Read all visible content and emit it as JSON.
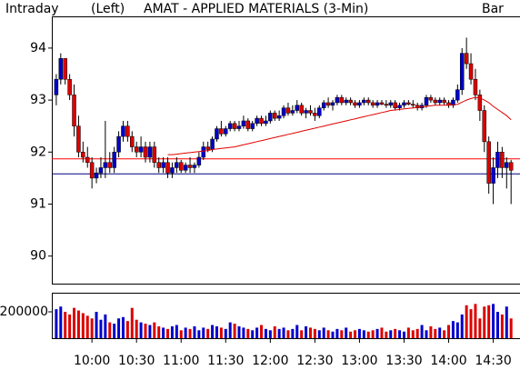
{
  "chart_data": [
    {
      "type": "candlestick",
      "header_left": "Intraday",
      "axis_side": "(Left)",
      "title": "AMAT - APPLIED MATERIALS (3-Min)",
      "chart_style": "Bar",
      "up_color": "#0000cc",
      "down_color": "#dd0000",
      "x": [
        576,
        579,
        582,
        585,
        588,
        591,
        594,
        597,
        600,
        603,
        606,
        609,
        612,
        615,
        618,
        621,
        624,
        627,
        630,
        633,
        636,
        639,
        642,
        645,
        648,
        651,
        654,
        657,
        660,
        663,
        666,
        669,
        672,
        675,
        678,
        681,
        684,
        687,
        690,
        693,
        696,
        699,
        702,
        705,
        708,
        711,
        714,
        717,
        720,
        723,
        726,
        729,
        732,
        735,
        738,
        741,
        744,
        747,
        750,
        753,
        756,
        759,
        762,
        765,
        768,
        771,
        774,
        777,
        780,
        783,
        786,
        789,
        792,
        795,
        798,
        801,
        804,
        807,
        810,
        813,
        816,
        819,
        822,
        825,
        828,
        831,
        834,
        837,
        840,
        843,
        846,
        849,
        852,
        855,
        858,
        861,
        864,
        867,
        870,
        873,
        876,
        879,
        882
      ],
      "ohlc": [
        [
          93.1,
          93.5,
          92.9,
          93.4
        ],
        [
          93.4,
          93.9,
          93.3,
          93.8
        ],
        [
          93.8,
          93.8,
          93.3,
          93.4
        ],
        [
          93.4,
          93.5,
          93.0,
          93.1
        ],
        [
          93.1,
          93.3,
          92.3,
          92.5
        ],
        [
          92.5,
          92.7,
          91.9,
          92.0
        ],
        [
          92.0,
          92.2,
          91.8,
          91.9
        ],
        [
          91.9,
          92.1,
          91.7,
          91.8
        ],
        [
          91.8,
          91.9,
          91.3,
          91.5
        ],
        [
          91.5,
          91.7,
          91.4,
          91.6
        ],
        [
          91.6,
          91.9,
          91.5,
          91.7
        ],
        [
          91.7,
          92.6,
          91.5,
          91.8
        ],
        [
          91.8,
          92.0,
          91.6,
          91.7
        ],
        [
          91.7,
          92.1,
          91.6,
          92.0
        ],
        [
          92.0,
          92.4,
          91.9,
          92.3
        ],
        [
          92.3,
          92.6,
          92.2,
          92.5
        ],
        [
          92.5,
          92.6,
          92.2,
          92.3
        ],
        [
          92.3,
          92.4,
          92.0,
          92.1
        ],
        [
          92.1,
          92.2,
          91.9,
          92.0
        ],
        [
          92.0,
          92.3,
          91.9,
          92.1
        ],
        [
          92.1,
          92.2,
          91.8,
          91.9
        ],
        [
          91.9,
          92.2,
          91.8,
          92.1
        ],
        [
          92.1,
          92.2,
          91.7,
          91.8
        ],
        [
          91.8,
          91.9,
          91.6,
          91.7
        ],
        [
          91.7,
          91.9,
          91.6,
          91.8
        ],
        [
          91.8,
          91.9,
          91.5,
          91.6
        ],
        [
          91.6,
          91.8,
          91.5,
          91.7
        ],
        [
          91.7,
          91.9,
          91.6,
          91.8
        ],
        [
          91.8,
          91.85,
          91.6,
          91.65
        ],
        [
          91.65,
          91.8,
          91.6,
          91.75
        ],
        [
          91.75,
          91.9,
          91.6,
          91.7
        ],
        [
          91.7,
          91.8,
          91.6,
          91.75
        ],
        [
          91.75,
          92.0,
          91.7,
          91.9
        ],
        [
          91.9,
          92.2,
          91.85,
          92.1
        ],
        [
          92.1,
          92.2,
          92.0,
          92.05
        ],
        [
          92.05,
          92.3,
          92.0,
          92.25
        ],
        [
          92.25,
          92.5,
          92.2,
          92.45
        ],
        [
          92.45,
          92.6,
          92.3,
          92.35
        ],
        [
          92.35,
          92.5,
          92.3,
          92.45
        ],
        [
          92.45,
          92.6,
          92.4,
          92.55
        ],
        [
          92.55,
          92.6,
          92.4,
          92.45
        ],
        [
          92.45,
          92.6,
          92.4,
          92.5
        ],
        [
          92.5,
          92.7,
          92.45,
          92.6
        ],
        [
          92.6,
          92.65,
          92.4,
          92.45
        ],
        [
          92.45,
          92.6,
          92.4,
          92.55
        ],
        [
          92.55,
          92.7,
          92.5,
          92.65
        ],
        [
          92.65,
          92.7,
          92.5,
          92.55
        ],
        [
          92.55,
          92.7,
          92.5,
          92.6
        ],
        [
          92.6,
          92.8,
          92.55,
          92.75
        ],
        [
          92.75,
          92.8,
          92.6,
          92.65
        ],
        [
          92.65,
          92.8,
          92.6,
          92.7
        ],
        [
          92.7,
          92.9,
          92.65,
          92.85
        ],
        [
          92.85,
          92.95,
          92.7,
          92.75
        ],
        [
          92.75,
          92.9,
          92.7,
          92.8
        ],
        [
          92.8,
          93.0,
          92.75,
          92.9
        ],
        [
          92.9,
          92.95,
          92.7,
          92.75
        ],
        [
          92.75,
          92.85,
          92.65,
          92.8
        ],
        [
          92.8,
          92.9,
          92.7,
          92.75
        ],
        [
          92.75,
          92.85,
          92.6,
          92.7
        ],
        [
          92.7,
          92.9,
          92.65,
          92.85
        ],
        [
          92.85,
          93.0,
          92.8,
          92.95
        ],
        [
          92.95,
          93.05,
          92.85,
          92.9
        ],
        [
          92.9,
          93.0,
          92.8,
          92.95
        ],
        [
          92.95,
          93.1,
          92.9,
          93.05
        ],
        [
          93.05,
          93.1,
          92.9,
          92.95
        ],
        [
          92.95,
          93.05,
          92.9,
          93.0
        ],
        [
          93.0,
          93.05,
          92.9,
          92.95
        ],
        [
          92.95,
          93.0,
          92.85,
          92.9
        ],
        [
          92.9,
          93.0,
          92.85,
          92.95
        ],
        [
          92.95,
          93.05,
          92.9,
          93.0
        ],
        [
          93.0,
          93.05,
          92.9,
          92.95
        ],
        [
          92.95,
          93.0,
          92.85,
          92.9
        ],
        [
          92.9,
          93.0,
          92.85,
          92.95
        ],
        [
          92.95,
          93.0,
          92.9,
          92.92
        ],
        [
          92.92,
          93.0,
          92.85,
          92.9
        ],
        [
          92.9,
          93.0,
          92.85,
          92.95
        ],
        [
          92.95,
          93.0,
          92.8,
          92.85
        ],
        [
          92.85,
          92.95,
          92.8,
          92.9
        ],
        [
          92.9,
          93.0,
          92.85,
          92.95
        ],
        [
          92.95,
          93.0,
          92.9,
          92.92
        ],
        [
          92.92,
          93.0,
          92.85,
          92.9
        ],
        [
          92.9,
          92.95,
          92.8,
          92.85
        ],
        [
          92.85,
          92.95,
          92.8,
          92.9
        ],
        [
          92.9,
          93.1,
          92.85,
          93.05
        ],
        [
          93.05,
          93.1,
          92.95,
          93.0
        ],
        [
          93.0,
          93.05,
          92.9,
          92.95
        ],
        [
          92.95,
          93.05,
          92.9,
          93.0
        ],
        [
          93.0,
          93.05,
          92.9,
          92.95
        ],
        [
          92.95,
          93.0,
          92.85,
          92.9
        ],
        [
          92.9,
          93.05,
          92.85,
          93.0
        ],
        [
          93.0,
          93.3,
          92.95,
          93.2
        ],
        [
          93.2,
          94.0,
          93.1,
          93.9
        ],
        [
          93.9,
          94.2,
          93.6,
          93.7
        ],
        [
          93.7,
          93.9,
          93.3,
          93.4
        ],
        [
          93.4,
          93.6,
          93.0,
          93.1
        ],
        [
          93.1,
          93.2,
          92.6,
          92.8
        ],
        [
          92.8,
          92.9,
          92.0,
          92.2
        ],
        [
          92.2,
          92.3,
          91.2,
          91.4
        ],
        [
          91.4,
          91.9,
          91.0,
          91.7
        ],
        [
          91.7,
          92.2,
          91.5,
          92.0
        ],
        [
          92.0,
          92.1,
          91.5,
          91.7
        ],
        [
          91.7,
          91.9,
          91.3,
          91.8
        ],
        [
          91.8,
          91.85,
          91.0,
          91.65
        ]
      ],
      "moving_average": {
        "color": "#e00000",
        "values": [
          null,
          null,
          null,
          null,
          null,
          null,
          null,
          null,
          null,
          null,
          null,
          null,
          null,
          null,
          null,
          null,
          null,
          null,
          null,
          null,
          null,
          null,
          null,
          null,
          null,
          91.95,
          91.95,
          91.96,
          91.97,
          91.98,
          91.99,
          92.0,
          92.01,
          92.02,
          92.03,
          92.05,
          92.06,
          92.07,
          92.08,
          92.09,
          92.1,
          92.12,
          92.14,
          92.16,
          92.18,
          92.2,
          92.22,
          92.24,
          92.26,
          92.28,
          92.3,
          92.32,
          92.34,
          92.36,
          92.38,
          92.4,
          92.42,
          92.44,
          92.46,
          92.48,
          92.5,
          92.52,
          92.54,
          92.56,
          92.58,
          92.6,
          92.62,
          92.64,
          92.66,
          92.68,
          92.7,
          92.72,
          92.74,
          92.76,
          92.78,
          92.8,
          92.81,
          92.82,
          92.83,
          92.84,
          92.85,
          92.86,
          92.87,
          92.88,
          92.89,
          92.9,
          92.9,
          92.9,
          92.9,
          92.91,
          92.92,
          92.96,
          93.0,
          93.03,
          93.05,
          93.04,
          93.0,
          92.95,
          92.88,
          92.82,
          92.76,
          92.7,
          92.62
        ]
      },
      "reference_lines": [
        {
          "value": 91.87,
          "color": "#ff0000"
        },
        {
          "value": 91.58,
          "color": "#000080"
        }
      ],
      "xlim": [
        573,
        888
      ],
      "ylim": [
        89.47,
        94.61
      ],
      "yticks": [
        90,
        91,
        92,
        93,
        94
      ]
    },
    {
      "type": "volume",
      "values": [
        220000,
        240000,
        200000,
        180000,
        230000,
        210000,
        190000,
        170000,
        150000,
        200000,
        140000,
        180000,
        120000,
        110000,
        150000,
        160000,
        130000,
        230000,
        140000,
        120000,
        110000,
        100000,
        120000,
        90000,
        80000,
        70000,
        90000,
        100000,
        60000,
        80000,
        70000,
        90000,
        60000,
        80000,
        70000,
        100000,
        90000,
        80000,
        70000,
        120000,
        110000,
        90000,
        80000,
        70000,
        60000,
        80000,
        100000,
        70000,
        60000,
        90000,
        70000,
        80000,
        60000,
        70000,
        100000,
        60000,
        90000,
        80000,
        70000,
        60000,
        80000,
        60000,
        50000,
        70000,
        60000,
        80000,
        50000,
        60000,
        70000,
        60000,
        50000,
        60000,
        70000,
        80000,
        50000,
        60000,
        70000,
        60000,
        50000,
        80000,
        60000,
        70000,
        100000,
        60000,
        90000,
        70000,
        80000,
        60000,
        100000,
        130000,
        120000,
        180000,
        250000,
        220000,
        260000,
        150000,
        240000,
        250000,
        260000,
        200000,
        180000,
        240000,
        150000
      ],
      "ylim": [
        0,
        345000
      ],
      "yticks": [
        200000
      ],
      "xticks": [
        {
          "value": 600,
          "label": "10:00"
        },
        {
          "value": 630,
          "label": "10:30"
        },
        {
          "value": 660,
          "label": "11:00"
        },
        {
          "value": 690,
          "label": "11:30"
        },
        {
          "value": 720,
          "label": "12:00"
        },
        {
          "value": 750,
          "label": "12:30"
        },
        {
          "value": 780,
          "label": "13:00"
        },
        {
          "value": 810,
          "label": "13:30"
        },
        {
          "value": 840,
          "label": "14:00"
        },
        {
          "value": 870,
          "label": "14:30"
        }
      ]
    }
  ]
}
